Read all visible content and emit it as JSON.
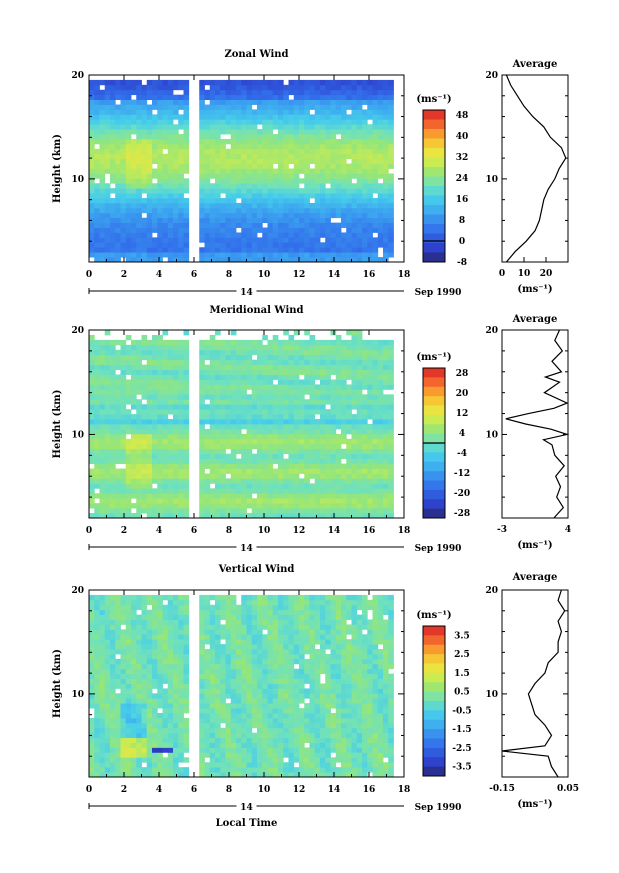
{
  "chart_data": [
    {
      "type": "heatmap",
      "title": "Zonal Wind",
      "ylabel": "Height (km)",
      "ylim": [
        2,
        20
      ],
      "yticks": [
        10,
        20
      ],
      "xlim": [
        0,
        18
      ],
      "xticks": [
        0,
        2,
        4,
        6,
        8,
        10,
        12,
        14,
        16,
        18
      ],
      "date_label": "14",
      "date_suffix": "Sep 1990",
      "colorbar": {
        "unit_label": "(ms⁻¹)",
        "ticks": [
          48,
          40,
          32,
          24,
          16,
          8,
          0,
          -8
        ],
        "range": [
          -8,
          50
        ],
        "contour_level": 0
      },
      "average": {
        "title": "Average",
        "xlim": [
          0,
          30
        ],
        "xticks": [
          0,
          10,
          20
        ],
        "unit_label": "(ms⁻¹)",
        "profile": [
          [
            2,
            2
          ],
          [
            3,
            6
          ],
          [
            4,
            11
          ],
          [
            5,
            15
          ],
          [
            6,
            17
          ],
          [
            7,
            18
          ],
          [
            8,
            19
          ],
          [
            9,
            21
          ],
          [
            10,
            24
          ],
          [
            11,
            26
          ],
          [
            12,
            29
          ],
          [
            13,
            27
          ],
          [
            14,
            22
          ],
          [
            15,
            19
          ],
          [
            16,
            14
          ],
          [
            17,
            10
          ],
          [
            18,
            7
          ],
          [
            19,
            4
          ],
          [
            20,
            2
          ]
        ]
      },
      "gaps": [
        [
          5.8,
          6.2
        ]
      ]
    },
    {
      "type": "heatmap",
      "title": "Meridional Wind",
      "ylabel": "Height (km)",
      "ylim": [
        2,
        20
      ],
      "yticks": [
        10,
        20
      ],
      "xlim": [
        0,
        18
      ],
      "xticks": [
        0,
        2,
        4,
        6,
        8,
        10,
        12,
        14,
        16,
        18
      ],
      "date_label": "14",
      "date_suffix": "Sep 1990",
      "colorbar": {
        "unit_label": "(ms⁻¹)",
        "ticks": [
          28,
          20,
          12,
          4,
          -4,
          -12,
          -20,
          -28
        ],
        "range": [
          -30,
          30
        ],
        "contour_level": 0
      },
      "average": {
        "title": "Average",
        "xlim": [
          -3,
          4
        ],
        "xticks": [
          -3,
          4
        ],
        "unit_label": "(ms⁻¹)",
        "profile": [
          [
            2,
            2.5
          ],
          [
            3,
            3.5
          ],
          [
            4,
            2.8
          ],
          [
            5,
            3.2
          ],
          [
            6,
            2.7
          ],
          [
            7,
            3.6
          ],
          [
            8,
            2.6
          ],
          [
            9,
            2.3
          ],
          [
            9.5,
            1.4
          ],
          [
            10,
            3.9
          ],
          [
            10.5,
            2.2
          ],
          [
            11,
            -0.5
          ],
          [
            11.5,
            -2.6
          ],
          [
            12,
            -0.2
          ],
          [
            12.5,
            2.5
          ],
          [
            13,
            3.9
          ],
          [
            14,
            1.5
          ],
          [
            15,
            3.1
          ],
          [
            15.5,
            1.6
          ],
          [
            16,
            3.3
          ],
          [
            17,
            2.3
          ],
          [
            18,
            3.4
          ],
          [
            19,
            2.6
          ],
          [
            20,
            3.1
          ]
        ]
      },
      "gaps": [
        [
          5.8,
          6.2
        ]
      ]
    },
    {
      "type": "heatmap",
      "title": "Vertical Wind",
      "ylabel": "Height (km)",
      "xlabel": "Local Time",
      "ylim": [
        2,
        20
      ],
      "yticks": [
        10,
        20
      ],
      "xlim": [
        0,
        18
      ],
      "xticks": [
        0,
        2,
        4,
        6,
        8,
        10,
        12,
        14,
        16,
        18
      ],
      "date_label": "14",
      "date_suffix": "Sep 1990",
      "colorbar": {
        "unit_label": "(ms⁻¹)",
        "ticks": [
          3.5,
          2.5,
          1.5,
          0.5,
          -0.5,
          -1.5,
          -2.5,
          -3.5
        ],
        "range": [
          -4,
          4
        ]
      },
      "average": {
        "title": "Average",
        "xlim": [
          -0.15,
          0.05
        ],
        "xtick_labels": [
          "-0.15",
          "0.05"
        ],
        "unit_label": "(ms⁻¹)",
        "profile": [
          [
            2,
            0.02
          ],
          [
            3,
            0.0
          ],
          [
            4,
            -0.01
          ],
          [
            4.5,
            -0.15
          ],
          [
            5,
            -0.02
          ],
          [
            6,
            0.0
          ],
          [
            7,
            -0.02
          ],
          [
            8,
            -0.05
          ],
          [
            9,
            -0.06
          ],
          [
            10,
            -0.07
          ],
          [
            11,
            -0.05
          ],
          [
            12,
            -0.02
          ],
          [
            13,
            -0.01
          ],
          [
            14,
            0.02
          ],
          [
            15,
            0.02
          ],
          [
            16,
            0.03
          ],
          [
            17,
            0.02
          ],
          [
            18,
            0.04
          ],
          [
            19,
            0.02
          ],
          [
            20,
            0.03
          ]
        ]
      },
      "gaps": [
        [
          5.8,
          6.2
        ]
      ]
    }
  ]
}
